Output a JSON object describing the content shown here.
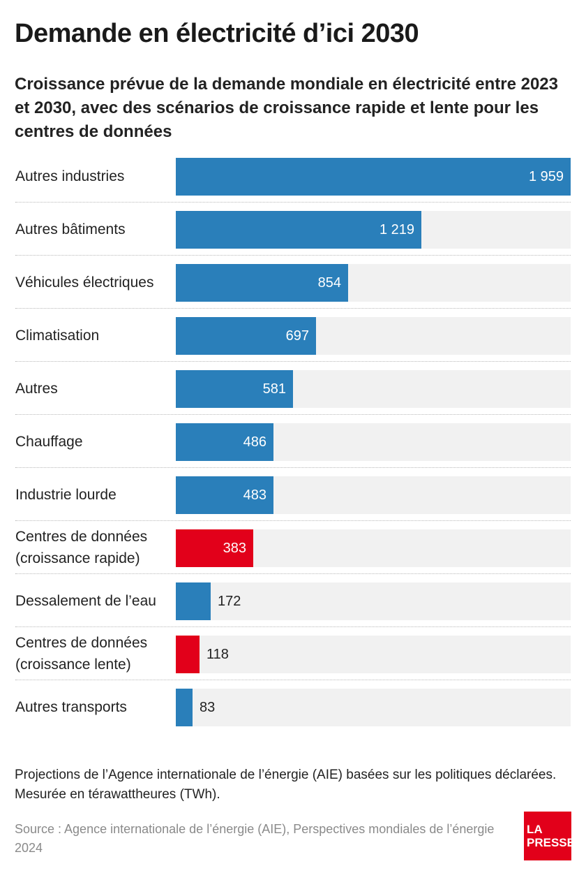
{
  "header": {
    "title": "Demande en électricité d’ici 2030",
    "subtitle": "Croissance prévue de la demande mondiale en électricité entre 2023 et 2030, avec des scénarios de croissance rapide et lente pour les centres de données"
  },
  "chart_data": {
    "type": "bar",
    "orientation": "horizontal",
    "unit": "TWh",
    "xlim": [
      0,
      1959
    ],
    "categories": [
      "Autres industries",
      "Autres bâtiments",
      "Véhicules électriques",
      "Climatisation",
      "Autres",
      "Chauffage",
      "Industrie lourde",
      "Centres de données (croissance rapide)",
      "Dessalement de l’eau",
      "Centres de données (croissance lente)",
      "Autres transports"
    ],
    "values": [
      1959,
      1219,
      854,
      697,
      581,
      486,
      483,
      383,
      172,
      118,
      83
    ],
    "value_labels": [
      "1 959",
      "1 219",
      "854",
      "697",
      "581",
      "486",
      "483",
      "383",
      "172",
      "118",
      "83"
    ],
    "highlight": [
      false,
      false,
      false,
      false,
      false,
      false,
      false,
      true,
      false,
      true,
      false
    ],
    "colors": {
      "default": "#2a7fba",
      "highlight": "#e2001a",
      "track": "#f1f1f1"
    }
  },
  "footer": {
    "note": "Projections de l’Agence internationale de l’énergie (AIE) basées sur les politiques déclarées. Mesurée en térawattheures (TWh).",
    "source": "Source : Agence internationale de l’énergie (AIE), Perspectives mondiales de l’énergie 2024",
    "logo_line1": "LA",
    "logo_line2": "PRESSE"
  }
}
